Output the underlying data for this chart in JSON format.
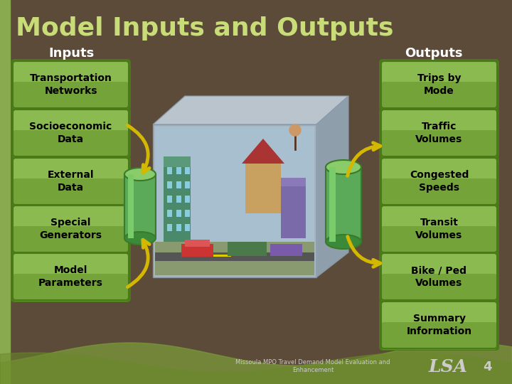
{
  "title": "Model Inputs and Outputs",
  "title_color": "#c8dc78",
  "bg_color": "#5c4b38",
  "left_stripe_color": "#8aaa50",
  "inputs_label": "Inputs",
  "outputs_label": "Outputs",
  "label_color": "#ffffff",
  "inputs": [
    "Transportation\nNetworks",
    "Socioeconomic\nData",
    "External\nData",
    "Special\nGenerators",
    "Model\nParameters"
  ],
  "outputs": [
    "Trips by\nMode",
    "Traffic\nVolumes",
    "Congested\nSpeeds",
    "Transit\nVolumes",
    "Bike / Ped\nVolumes",
    "Summary\nInformation"
  ],
  "box_face_top": "#8aba50",
  "box_face_mid": "#6a9a30",
  "box_edge_color": "#4a7a18",
  "box_text_color": "#000000",
  "footer_text": "Missoula MPO Travel Demand Model Evaluation and\nEnhancement",
  "footer_logo": "LSA",
  "footer_page": "4",
  "arrow_color": "#d4b800",
  "wave_color": "#7a9a3a"
}
